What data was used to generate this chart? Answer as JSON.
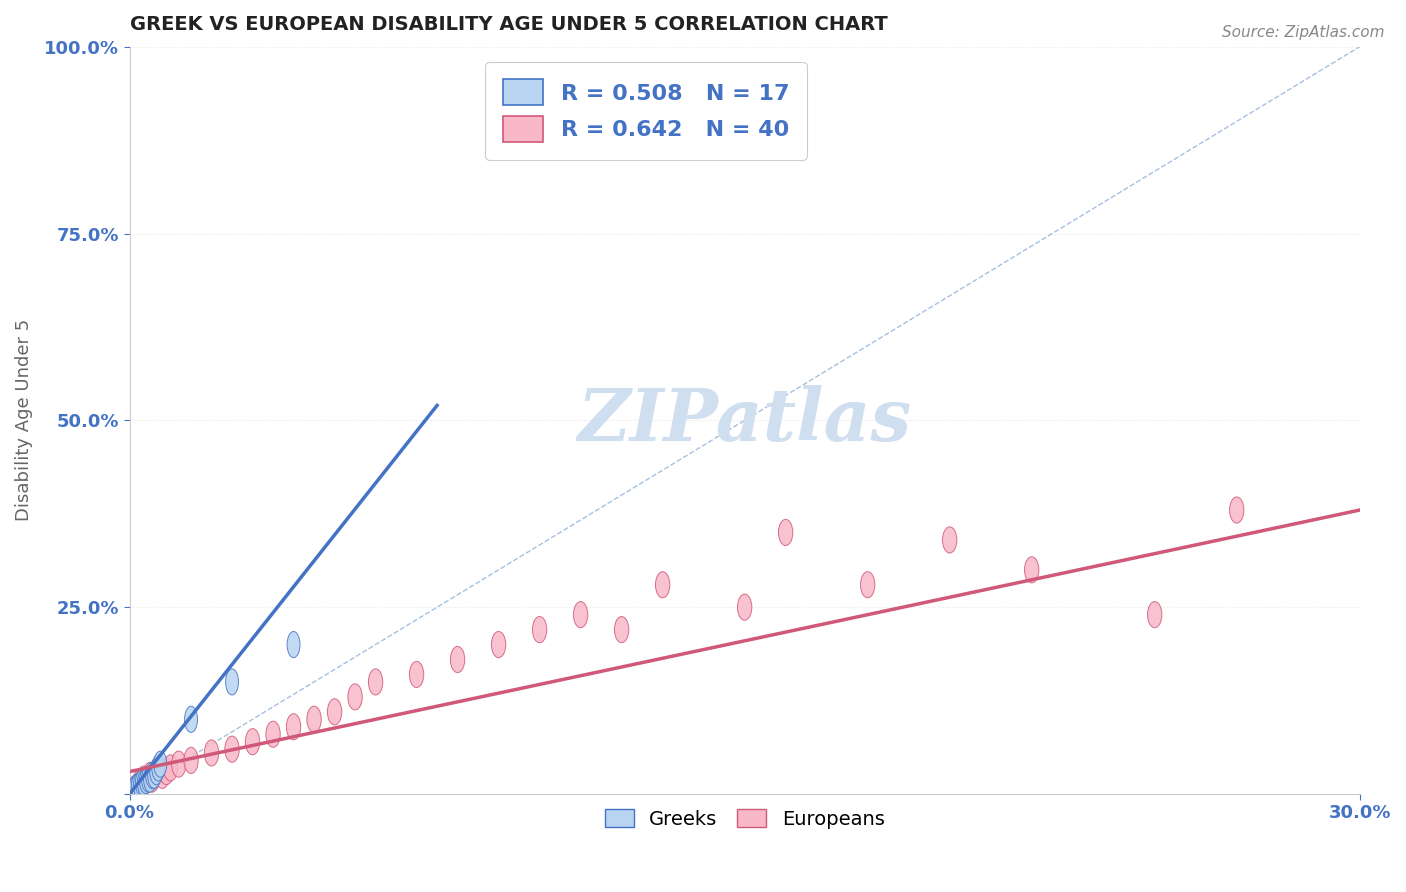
{
  "title": "GREEK VS EUROPEAN DISABILITY AGE UNDER 5 CORRELATION CHART",
  "source": "Source: ZipAtlas.com",
  "xlabel": "",
  "ylabel": "Disability Age Under 5",
  "xlim": [
    0.0,
    30.0
  ],
  "ylim": [
    0.0,
    100.0
  ],
  "xticks": [
    0.0,
    30.0
  ],
  "xtick_labels": [
    "0.0%",
    "30.0%"
  ],
  "yticks": [
    0.0,
    25.0,
    50.0,
    75.0,
    100.0
  ],
  "ytick_labels": [
    "",
    "25.0%",
    "50.0%",
    "75.0%",
    "100.0%"
  ],
  "greek_R": 0.508,
  "greek_N": 17,
  "european_R": 0.642,
  "european_N": 40,
  "greek_color": "#b8d4f0",
  "european_color": "#f8b8c8",
  "greek_line_color": "#4472c4",
  "european_line_color": "#d05878",
  "ref_line_color": "#90b0d8",
  "watermark_color": "#d0dff0",
  "background_color": "#ffffff",
  "grid_color": "#e8e8e8",
  "greeks_x": [
    0.1,
    0.15,
    0.2,
    0.25,
    0.3,
    0.35,
    0.4,
    0.45,
    0.5,
    0.55,
    0.6,
    0.65,
    0.7,
    0.75,
    1.5,
    2.5,
    4.0
  ],
  "greeks_y": [
    0.5,
    0.8,
    1.0,
    1.2,
    1.5,
    1.5,
    1.8,
    2.0,
    2.0,
    2.5,
    2.5,
    3.0,
    3.5,
    4.0,
    10.0,
    15.0,
    20.0
  ],
  "europeans_x": [
    0.1,
    0.15,
    0.2,
    0.25,
    0.3,
    0.35,
    0.4,
    0.45,
    0.5,
    0.55,
    0.6,
    0.7,
    0.8,
    0.9,
    1.0,
    1.2,
    1.5,
    2.0,
    2.5,
    3.0,
    3.5,
    4.0,
    4.5,
    5.0,
    5.5,
    6.0,
    7.0,
    8.0,
    9.0,
    10.0,
    11.0,
    12.0,
    13.0,
    15.0,
    16.0,
    18.0,
    20.0,
    22.0,
    25.0,
    27.0
  ],
  "europeans_y": [
    0.5,
    0.8,
    1.0,
    1.5,
    1.5,
    2.0,
    1.8,
    2.0,
    2.5,
    2.0,
    2.5,
    3.0,
    2.5,
    3.0,
    3.5,
    4.0,
    4.5,
    5.5,
    6.0,
    7.0,
    8.0,
    9.0,
    10.0,
    11.0,
    13.0,
    15.0,
    16.0,
    18.0,
    20.0,
    22.0,
    24.0,
    22.0,
    28.0,
    25.0,
    35.0,
    28.0,
    34.0,
    30.0,
    24.0,
    38.0
  ],
  "greek_line_x0": 0.0,
  "greek_line_y0": 0.0,
  "greek_line_x1": 7.5,
  "greek_line_y1": 52.0,
  "euro_line_x0": 0.0,
  "euro_line_y0": 3.0,
  "euro_line_x1": 30.0,
  "euro_line_y1": 38.0
}
